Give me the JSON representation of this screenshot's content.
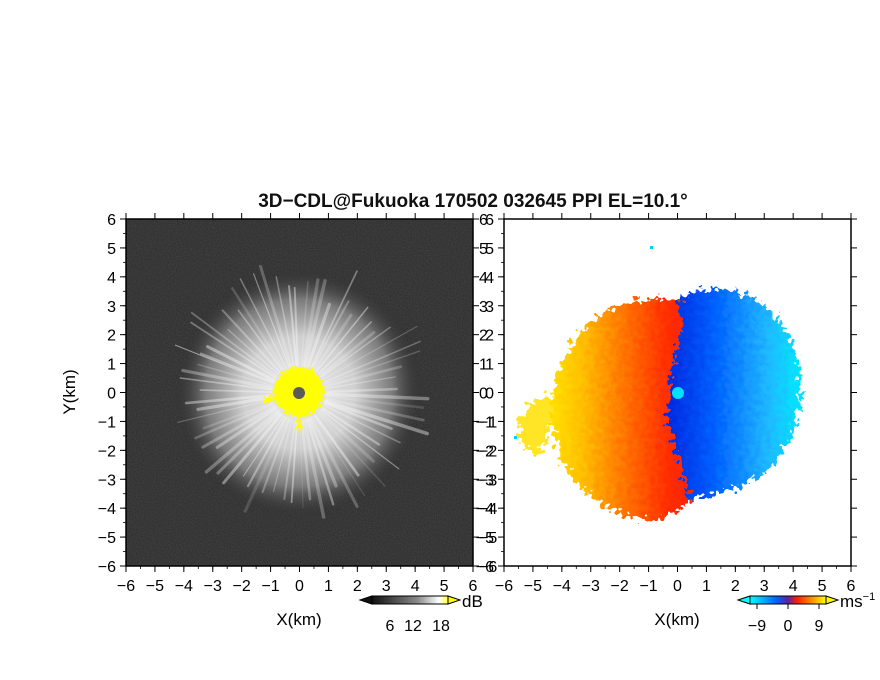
{
  "title": "3D−CDL@Fukuoka 170502 032645 PPI EL=10.1°",
  "panels": [
    {
      "id": "reflectivity",
      "xlabel": "X(km)",
      "ylabel": "Y(km)",
      "colorbar": {
        "unit": "dB",
        "ticks": [
          "6",
          "12",
          "18"
        ],
        "colors": [
          "#101010",
          "#ffffff",
          "#ffff00"
        ]
      }
    },
    {
      "id": "velocity",
      "xlabel": "X(km)",
      "colorbar": {
        "unit": "ms",
        "unit_sup": "−1",
        "ticks": [
          "−9",
          "0",
          "9"
        ],
        "colors": [
          "#00ffff",
          "#0060ff",
          "#ff2000",
          "#ffff00"
        ]
      }
    }
  ],
  "chart_data": [
    {
      "type": "heatmap",
      "description_variable": "PPI scan, signal intensity",
      "xlim": [
        -6,
        6
      ],
      "ylim": [
        -6,
        6
      ],
      "x_ticks": [
        "−6",
        "−5",
        "−4",
        "−3",
        "−2",
        "−1",
        "0",
        "1",
        "2",
        "3",
        "4",
        "5",
        "6"
      ],
      "y_ticks": [
        "6",
        "5",
        "4",
        "3",
        "2",
        "1",
        "0",
        "−1",
        "−2",
        "−3",
        "−4",
        "−5",
        "−6"
      ],
      "colorbar_range": [
        6,
        18
      ],
      "colors": {
        "background": "#2a2a2a",
        "halo": "#d8d8d8",
        "saturated": "#ffff00",
        "center": "#666666"
      },
      "features": {
        "halo_radius_km": 4.3,
        "saturated_radius_km": 1.0
      }
    },
    {
      "type": "heatmap",
      "description_variable": "PPI scan, radial velocity",
      "xlim": [
        -6,
        6
      ],
      "ylim": [
        -6,
        6
      ],
      "x_ticks": [
        "−6",
        "−5",
        "−4",
        "−3",
        "−2",
        "−1",
        "0",
        "1",
        "2",
        "3",
        "4",
        "5",
        "6"
      ],
      "y_ticks": [
        "6",
        "5",
        "4",
        "3",
        "2",
        "1",
        "0",
        "−1",
        "−2",
        "−3",
        "−4",
        "−5",
        "−6"
      ],
      "colorbar_range": [
        -9,
        9
      ],
      "colors": {
        "negative_far": "#00e0ff",
        "negative_near": "#0030e0",
        "positive_near": "#ff2000",
        "positive_far": "#ffe000",
        "center": "#00e0ff"
      },
      "features": {
        "data_radius_km": 4.5
      }
    }
  ]
}
